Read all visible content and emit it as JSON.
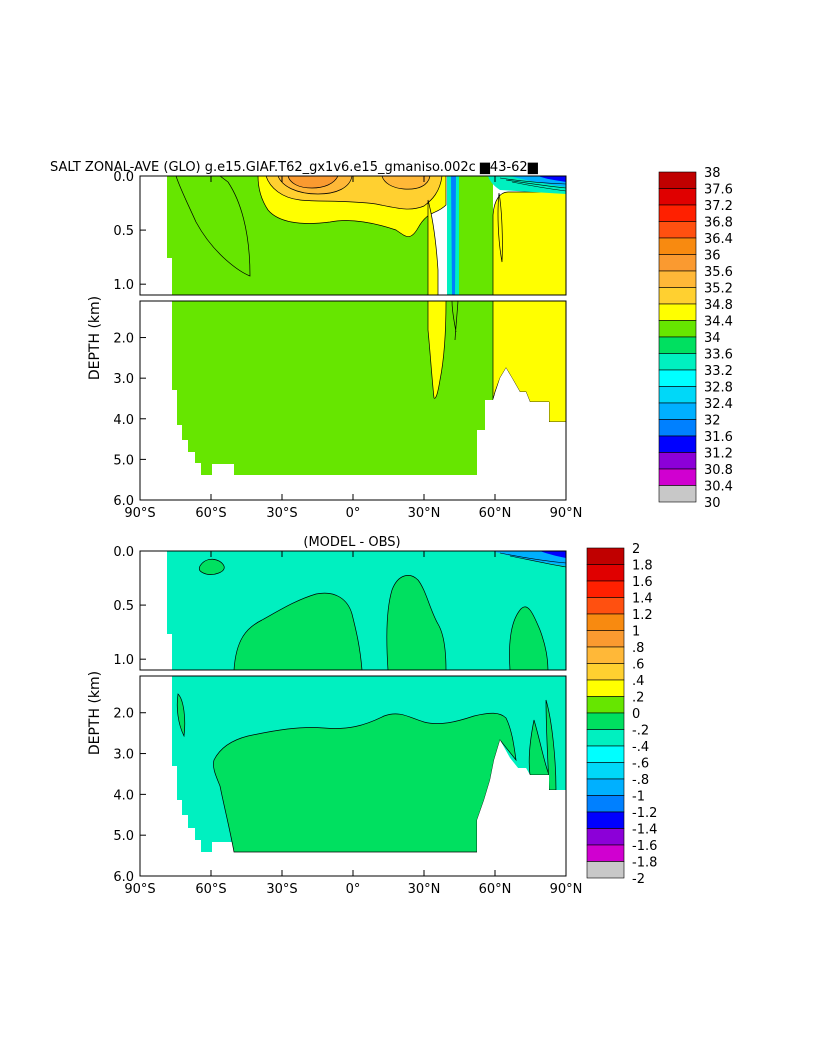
{
  "chart_data": [
    {
      "type": "heatmap",
      "title": "SALT ZONAL-AVE (GLO) g.e15.GIAF.T62_gx1v6.e15_gmaniso.002c ▆43-62▆",
      "ylabel": "DEPTH (km)",
      "xlabel": "",
      "x_ticks": [
        "90°S",
        "60°S",
        "30°S",
        "0°",
        "30°N",
        "60°N",
        "90°N"
      ],
      "y_ticks_upper": [
        "0.0",
        "0.5",
        "1.0"
      ],
      "y_ticks_lower": [
        "2.0",
        "3.0",
        "4.0",
        "5.0",
        "6.0"
      ],
      "xlim": [
        -90,
        90
      ],
      "ylim": [
        6.0,
        0.0
      ],
      "colorbar_labels": [
        "38",
        "37.6",
        "37.2",
        "36.8",
        "36.4",
        "36",
        "35.6",
        "35.2",
        "34.8",
        "34.4",
        "34",
        "33.6",
        "33.2",
        "32.8",
        "32.4",
        "32",
        "31.6",
        "31.2",
        "30.8",
        "30.4",
        "30"
      ],
      "colorbar_colors": [
        "#c00000",
        "#e00000",
        "#ff2000",
        "#ff5010",
        "#f88a10",
        "#fa9a30",
        "#ffb838",
        "#ffd030",
        "#ffff00",
        "#66e600",
        "#00e060",
        "#00f0c0",
        "#00ffff",
        "#00d8f8",
        "#00b0ff",
        "#0080ff",
        "#0000ff",
        "#8c00d8",
        "#d000d0",
        "#c8c8c8",
        "#707070"
      ]
    },
    {
      "type": "heatmap",
      "title": "(MODEL - OBS)",
      "ylabel": "DEPTH (km)",
      "xlabel": "",
      "x_ticks": [
        "90°S",
        "60°S",
        "30°S",
        "0°",
        "30°N",
        "60°N",
        "90°N"
      ],
      "y_ticks_upper": [
        "0.0",
        "0.5",
        "1.0"
      ],
      "y_ticks_lower": [
        "2.0",
        "3.0",
        "4.0",
        "5.0",
        "6.0"
      ],
      "xlim": [
        -90,
        90
      ],
      "ylim": [
        6.0,
        0.0
      ],
      "colorbar_labels": [
        "2",
        "1.8",
        "1.6",
        "1.4",
        "1.2",
        "1",
        ".8",
        ".6",
        ".4",
        ".2",
        "0",
        "-.2",
        "-.4",
        "-.6",
        "-.8",
        "-1",
        "-1.2",
        "-1.4",
        "-1.6",
        "-1.8",
        "-2"
      ],
      "colorbar_colors": [
        "#c00000",
        "#e00000",
        "#ff2000",
        "#ff5010",
        "#f88a10",
        "#fa9a30",
        "#ffb838",
        "#ffd030",
        "#ffff00",
        "#66e600",
        "#00e060",
        "#00f0c0",
        "#00ffff",
        "#00d8f8",
        "#00b0ff",
        "#0080ff",
        "#0000ff",
        "#8c00d8",
        "#d000d0",
        "#c8c8c8",
        "#707070"
      ]
    }
  ]
}
